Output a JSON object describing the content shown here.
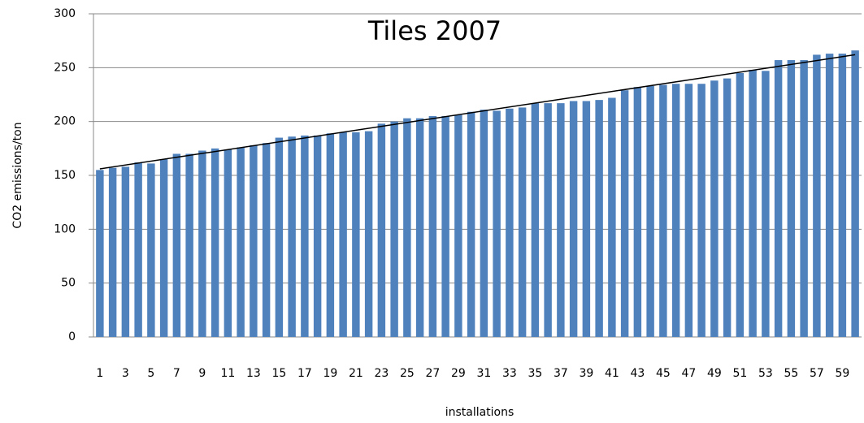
{
  "chart_data": {
    "type": "bar",
    "title": "Tiles 2007",
    "x_label": "installations",
    "y_label": "CO2 emissions/ton",
    "categories": [
      "1",
      null,
      "3",
      null,
      "5",
      null,
      "7",
      null,
      "9",
      null,
      "11",
      null,
      "13",
      null,
      "15",
      null,
      "17",
      null,
      "19",
      null,
      "21",
      null,
      "23",
      null,
      "25",
      null,
      "27",
      null,
      "29",
      null,
      "31",
      null,
      "33",
      null,
      "35",
      null,
      "37",
      null,
      "39",
      null,
      "41",
      null,
      "43",
      null,
      "45",
      null,
      "47",
      null,
      "49",
      null,
      "51",
      null,
      "53",
      null,
      "55",
      null,
      "57",
      null,
      "59",
      null
    ],
    "values": [
      155,
      157,
      158,
      162,
      161,
      165,
      170,
      170,
      173,
      175,
      174,
      176,
      178,
      180,
      185,
      186,
      187,
      187,
      189,
      190,
      190,
      191,
      198,
      200,
      203,
      203,
      205,
      205,
      206,
      209,
      211,
      210,
      212,
      213,
      217,
      217,
      217,
      219,
      219,
      220,
      222,
      229,
      232,
      233,
      234,
      235,
      235,
      235,
      238,
      240,
      245,
      248,
      247,
      257,
      257,
      257,
      262,
      263,
      263,
      266
    ],
    "trend": [
      156,
      262
    ],
    "color": "#4f81bd",
    "trend_color": "#000000",
    "ylim": [
      0,
      300
    ],
    "yticks": [
      0,
      50,
      100,
      150,
      200,
      250,
      300
    ],
    "grid": true
  }
}
